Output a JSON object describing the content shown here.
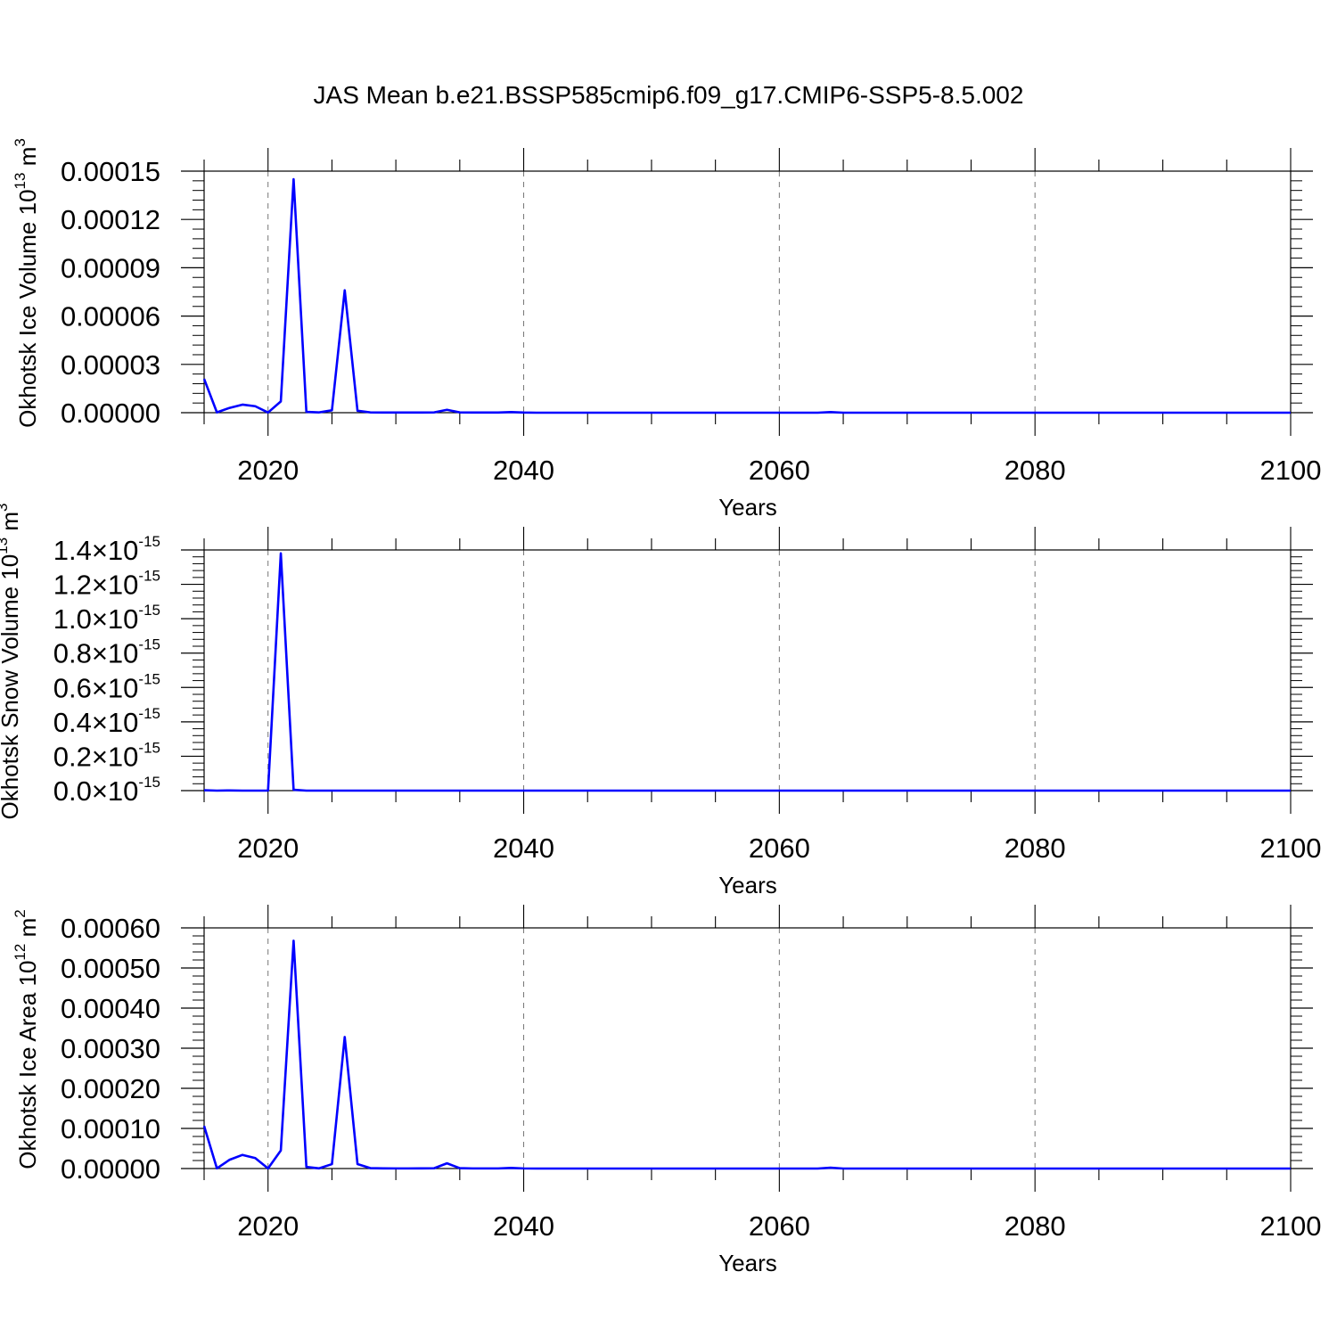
{
  "figure": {
    "title": "JAS Mean b.e21.BSSP585cmip6.f09_g17.CMIP6-SSP5-8.5.002",
    "series_color": "#0000ff"
  },
  "chart_data": [
    {
      "type": "line",
      "title": "JAS Mean b.e21.BSSP585cmip6.f09_g17.CMIP6-SSP5-8.5.002",
      "ylabel": "Okhotsk Ice Volume 10",
      "ylabel_exponent": "13",
      "ylabel_unit": "m",
      "ylabel_unit_exponent": "3",
      "xlabel": "Years",
      "xlim": [
        2015,
        2100
      ],
      "ylim": [
        0,
        0.00015
      ],
      "x_ticks": [
        "2020",
        "2040",
        "2060",
        "2080",
        "2100"
      ],
      "y_ticks": [
        {
          "value": 0,
          "label": "0.00000"
        },
        {
          "value": 3e-05,
          "label": "0.00003"
        },
        {
          "value": 6e-05,
          "label": "0.00006"
        },
        {
          "value": 9e-05,
          "label": "0.00009"
        },
        {
          "value": 0.00012,
          "label": "0.00012"
        },
        {
          "value": 0.00015,
          "label": "0.00015"
        }
      ],
      "grid": "vertical dashed at major x ticks",
      "x": [
        2015,
        2016,
        2017,
        2018,
        2019,
        2020,
        2021,
        2022,
        2023,
        2024,
        2025,
        2026,
        2027,
        2028,
        2029,
        2030,
        2031,
        2032,
        2033,
        2034,
        2035,
        2036,
        2037,
        2038,
        2039,
        2040
      ],
      "y": [
        2.1e-05,
        2e-07,
        3e-06,
        5e-06,
        4e-06,
        1e-07,
        7e-06,
        0.000145,
        5e-07,
        2e-07,
        1.5e-06,
        7.6e-05,
        1.2e-06,
        2e-07,
        1e-07,
        1e-07,
        1e-07,
        1e-07,
        2e-07,
        1.8e-06,
        2e-07,
        1e-07,
        1e-07,
        1e-07,
        4e-07,
        1e-07
      ],
      "tail_value": 0,
      "tail_bumps": [
        {
          "x": 2064,
          "y": 4e-07
        }
      ]
    },
    {
      "type": "line",
      "ylabel": "Okhotsk Snow Volume 10",
      "ylabel_exponent": "13",
      "ylabel_unit": "m",
      "ylabel_unit_exponent": "3",
      "xlabel": "Years",
      "xlim": [
        2015,
        2100
      ],
      "ylim": [
        0,
        1.4
      ],
      "y_scale_note": "values in units of 10^-15",
      "x_ticks": [
        "2020",
        "2040",
        "2060",
        "2080",
        "2100"
      ],
      "y_ticks": [
        {
          "value": 0,
          "label": "0.0"
        },
        {
          "value": 0.2,
          "label": "0.2"
        },
        {
          "value": 0.4,
          "label": "0.4"
        },
        {
          "value": 0.6,
          "label": "0.6"
        },
        {
          "value": 0.8,
          "label": "0.8"
        },
        {
          "value": 1.0,
          "label": "1.0"
        },
        {
          "value": 1.2,
          "label": "1.2"
        },
        {
          "value": 1.4,
          "label": "1.4"
        }
      ],
      "y_tick_mult": "×10",
      "y_tick_exp": "-15",
      "grid": "vertical dashed at major x ticks",
      "x": [
        2015,
        2016,
        2017,
        2018,
        2019,
        2020,
        2021,
        2022,
        2023,
        2024,
        2025
      ],
      "y": [
        0.002,
        0,
        0.001,
        0,
        0,
        0,
        1.38,
        0.005,
        0,
        0,
        0
      ],
      "tail_value": 0,
      "tail_bumps": []
    },
    {
      "type": "line",
      "ylabel": "Okhotsk Ice Area 10",
      "ylabel_exponent": "12",
      "ylabel_unit": "m",
      "ylabel_unit_exponent": "2",
      "xlabel": "Years",
      "xlim": [
        2015,
        2100
      ],
      "ylim": [
        0,
        0.0006
      ],
      "x_ticks": [
        "2020",
        "2040",
        "2060",
        "2080",
        "2100"
      ],
      "y_ticks": [
        {
          "value": 0,
          "label": "0.00000"
        },
        {
          "value": 0.0001,
          "label": "0.00010"
        },
        {
          "value": 0.0002,
          "label": "0.00020"
        },
        {
          "value": 0.0003,
          "label": "0.00030"
        },
        {
          "value": 0.0004,
          "label": "0.00040"
        },
        {
          "value": 0.0005,
          "label": "0.00050"
        },
        {
          "value": 0.0006,
          "label": "0.00060"
        }
      ],
      "grid": "vertical dashed at major x ticks",
      "x": [
        2015,
        2016,
        2017,
        2018,
        2019,
        2020,
        2021,
        2022,
        2023,
        2024,
        2025,
        2026,
        2027,
        2028,
        2029,
        2030,
        2031,
        2032,
        2033,
        2034,
        2035,
        2036,
        2037,
        2038,
        2039,
        2040
      ],
      "y": [
        0.000106,
        5e-07,
        2.2e-05,
        3.4e-05,
        2.6e-05,
        3e-07,
        4.5e-05,
        0.000568,
        4e-06,
        5e-07,
        1.1e-05,
        0.000328,
        1.1e-05,
        1e-06,
        5e-07,
        3e-07,
        3e-07,
        5e-07,
        8e-07,
        1.3e-05,
        1e-06,
        3e-07,
        3e-07,
        3e-07,
        1.5e-06,
        3e-07
      ],
      "tail_value": 0,
      "tail_bumps": [
        {
          "x": 2064,
          "y": 2e-06
        }
      ]
    }
  ]
}
